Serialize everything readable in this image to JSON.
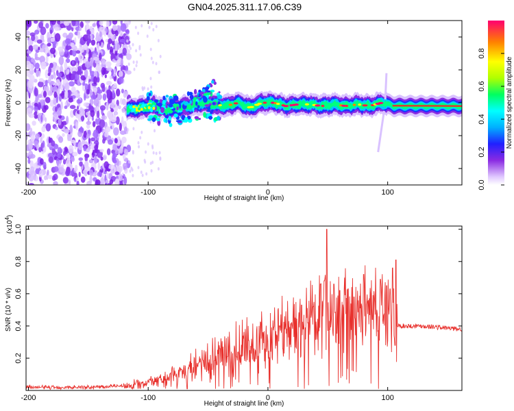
{
  "title": "GN04.2025.311.17.06.C39",
  "chart_data": [
    {
      "type": "heatmap",
      "title": "GN04.2025.311.17.06.C39",
      "xlabel": "Height of straight line (km)",
      "ylabel": "Frequency (Hz)",
      "xlim": [
        -202,
        162
      ],
      "ylim": [
        -50,
        50
      ],
      "xticks": [
        -200,
        -100,
        0,
        100
      ],
      "yticks": [
        -40,
        -20,
        0,
        20,
        40
      ],
      "colorbar": {
        "label": "Normalized spectral amplitude",
        "range": [
          0,
          1
        ],
        "ticks": [
          "0.0",
          "0.2",
          "0.4",
          "0.6",
          "0.8"
        ]
      },
      "ridge": {
        "x": [
          -115,
          -105,
          -95,
          -85,
          -75,
          -65,
          -55,
          -45,
          -35,
          -25,
          -15,
          -5,
          5,
          15,
          25,
          35,
          45,
          55,
          65,
          75,
          85,
          95,
          105,
          115,
          130,
          145,
          160
        ],
        "y": [
          -4,
          -3,
          -2,
          -4,
          -3,
          -2,
          0,
          -1,
          -2,
          0,
          -3,
          0,
          0,
          -2,
          -1,
          -1,
          -2,
          -1,
          -2,
          -1,
          -2,
          0,
          -2,
          -2,
          -2,
          -2,
          -2
        ]
      }
    },
    {
      "type": "line",
      "xlabel": "Height of straight line (km)",
      "ylabel": "SNR (10 * v/v)",
      "scale_label": "(x10",
      "scale_exp": "4",
      "xlim": [
        -202,
        162
      ],
      "ylim": [
        0,
        1.02
      ],
      "xticks": [
        -200,
        -100,
        0,
        100
      ],
      "yticks": [
        "0.2",
        "0.4",
        "0.6",
        "0.8",
        "1.0"
      ],
      "series": [
        {
          "color": "#e8302c",
          "envelope_x": [
            -200,
            -150,
            -120,
            -100,
            -80,
            -60,
            -40,
            -20,
            0,
            20,
            40,
            50,
            60,
            70,
            80,
            90,
            100,
            105,
            107,
            108,
            110,
            130,
            160
          ],
          "envelope_y": [
            0.02,
            0.02,
            0.03,
            0.05,
            0.09,
            0.15,
            0.21,
            0.27,
            0.32,
            0.37,
            0.42,
            0.44,
            0.47,
            0.47,
            0.49,
            0.5,
            0.5,
            0.48,
            0.3,
            0.4,
            0.4,
            0.4,
            0.38
          ],
          "spikes": [
            [
              -112,
              0.07
            ],
            [
              -72,
              0.13
            ],
            [
              -58,
              0.17
            ],
            [
              -44,
              0.33
            ],
            [
              -40,
              0.26
            ],
            [
              -34,
              0.21
            ],
            [
              -16,
              0.31
            ],
            [
              -4,
              0.36
            ],
            [
              10,
              0.4
            ],
            [
              28,
              0.53
            ],
            [
              38,
              0.52
            ],
            [
              44,
              0.66
            ],
            [
              47,
              0.68
            ],
            [
              49,
              1.0
            ],
            [
              55,
              0.66
            ],
            [
              60,
              0.62
            ],
            [
              67,
              0.63
            ],
            [
              72,
              0.58
            ],
            [
              80,
              0.72
            ],
            [
              86,
              0.6
            ],
            [
              94,
              0.69
            ],
            [
              99,
              0.65
            ],
            [
              102,
              0.63
            ],
            [
              104,
              0.76
            ],
            [
              106,
              0.28
            ],
            [
              107,
              0.81
            ]
          ]
        }
      ]
    }
  ]
}
